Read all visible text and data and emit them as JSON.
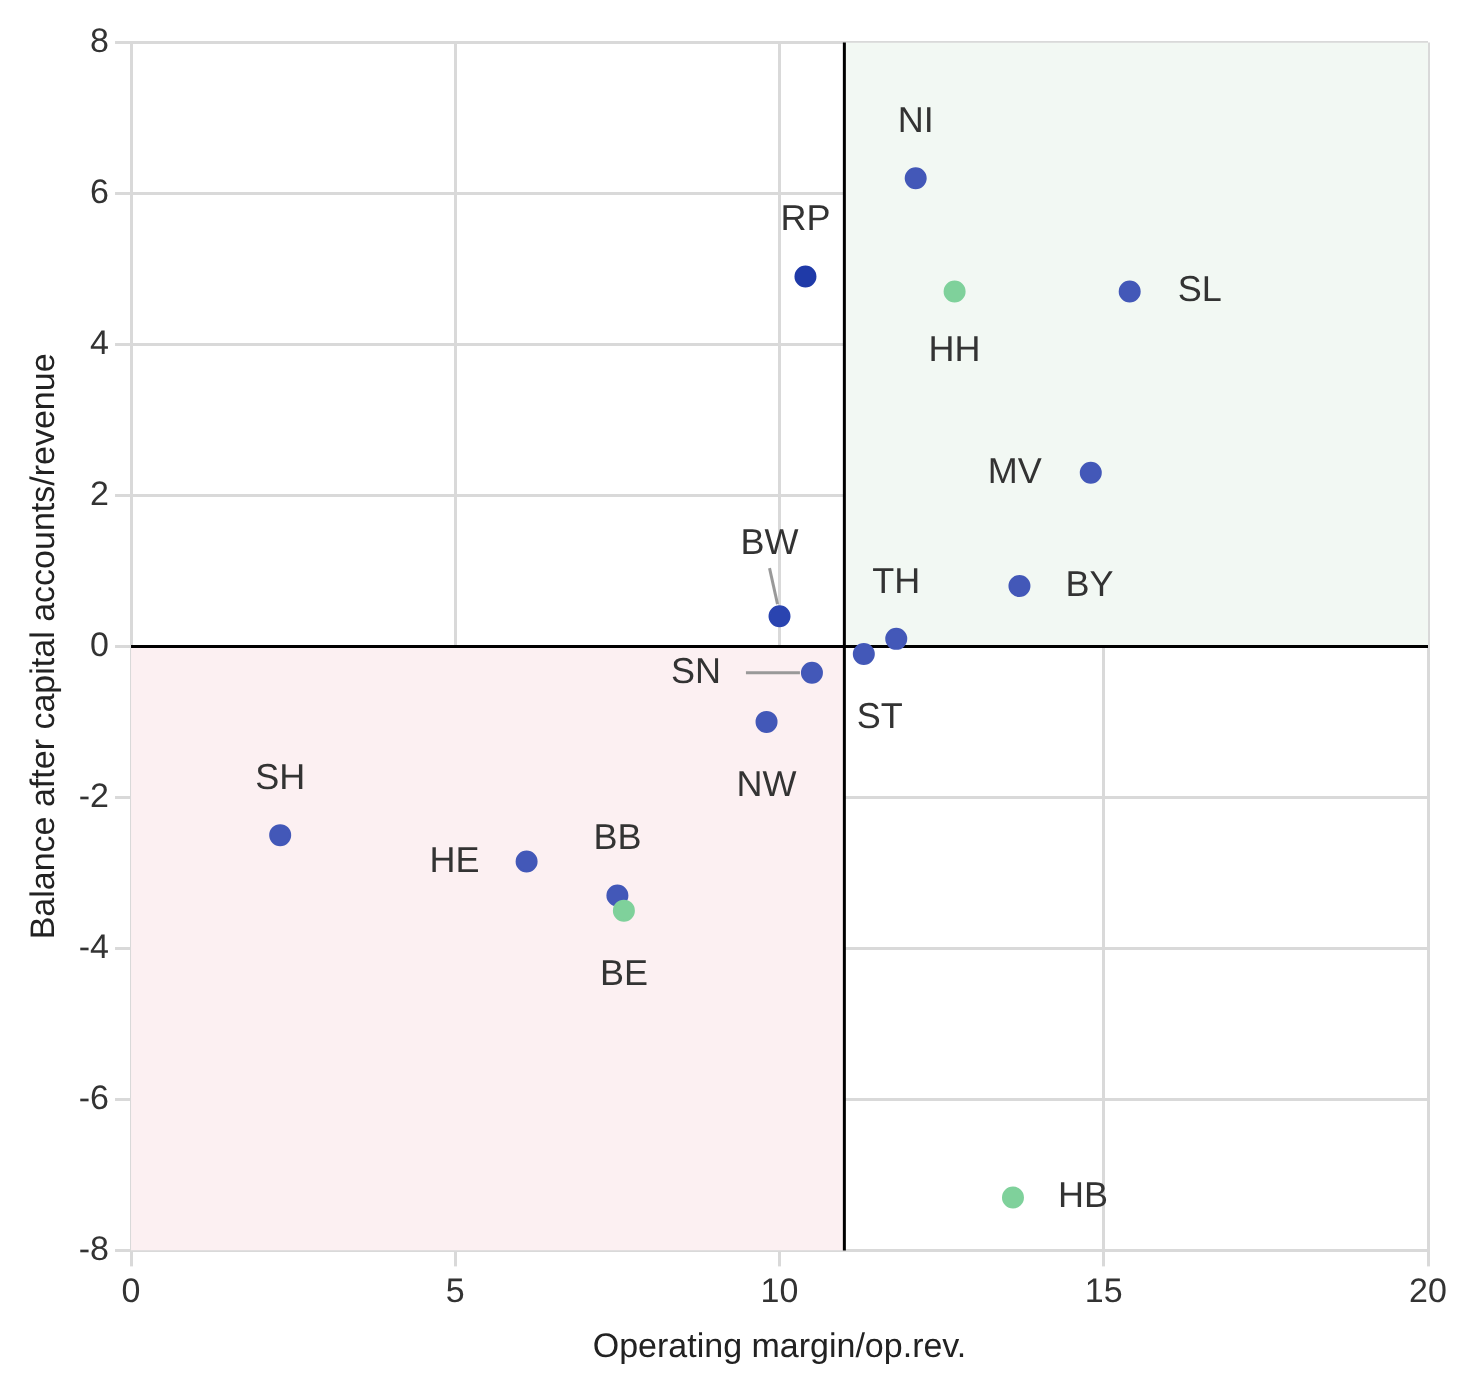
{
  "chart_data": {
    "type": "scatter",
    "xlabel": "Operating margin/op.rev.",
    "ylabel": "Balance after capital accounts/revenue",
    "xlim": [
      0,
      20
    ],
    "xticks": [
      0,
      5,
      10,
      15,
      20
    ],
    "ylim": [
      -8,
      8
    ],
    "yticks": [
      -8,
      -6,
      -4,
      -2,
      0,
      2,
      4,
      6,
      8
    ],
    "grid": true,
    "legend": false,
    "marker": "circle",
    "series": [
      {
        "x": [
          12.1,
          10.4,
          12.7,
          15.4,
          14.8,
          13.7,
          10.0,
          11.8,
          11.3,
          10.5,
          9.8,
          2.3,
          6.1,
          7.5,
          7.6,
          13.6
        ],
        "values": [
          6.2,
          4.9,
          4.7,
          4.7,
          2.3,
          0.8,
          0.4,
          0.1,
          -0.1,
          -0.35,
          -1.0,
          -2.5,
          -2.85,
          -3.3,
          -3.5,
          -7.3
        ],
        "colors": [
          "#4358b8",
          "#1f3aa8",
          "#7fd19b",
          "#4358b8",
          "#4358b8",
          "#4358b8",
          "#2a44b0",
          "#4358b8",
          "#4358b8",
          "#4358b8",
          "#4358b8",
          "#4358b8",
          "#4358b8",
          "#4358b8",
          "#7fd19b",
          "#7fd19b"
        ]
      }
    ],
    "ref_lines": [
      {
        "axis": "x",
        "value": 11,
        "color": "#000000"
      },
      {
        "axis": "y",
        "value": 0,
        "color": "#000000"
      }
    ],
    "bands": [
      {
        "axis": "x",
        "from": 11,
        "to": 20,
        "color": "#f2f8f3"
      },
      {
        "axis": "y",
        "from": -8,
        "to": 0,
        "color": "#fcf0f2"
      }
    ],
    "annotations": [
      {
        "text": "NI",
        "x": 12.1,
        "y": 6.2
      },
      {
        "text": "RP",
        "x": 10.4,
        "y": 4.9
      },
      {
        "text": "HH",
        "x": 12.7,
        "y": 4.7
      },
      {
        "text": "SL",
        "x": 15.4,
        "y": 4.7
      },
      {
        "text": "MV",
        "x": 14.8,
        "y": 2.3
      },
      {
        "text": "BY",
        "x": 13.7,
        "y": 0.8
      },
      {
        "text": "BW",
        "x": 10.0,
        "y": 0.4
      },
      {
        "text": "TH",
        "x": 11.8,
        "y": 0.1
      },
      {
        "text": "ST",
        "x": 11.3,
        "y": -0.1
      },
      {
        "text": "SN",
        "x": 10.5,
        "y": -0.35
      },
      {
        "text": "NW",
        "x": 9.8,
        "y": -1.0
      },
      {
        "text": "SH",
        "x": 2.3,
        "y": -2.5
      },
      {
        "text": "HE",
        "x": 6.1,
        "y": -2.85
      },
      {
        "text": "BB",
        "x": 7.5,
        "y": -3.3
      },
      {
        "text": "BE",
        "x": 7.6,
        "y": -3.5
      },
      {
        "text": "HB",
        "x": 13.6,
        "y": -7.3
      }
    ]
  }
}
